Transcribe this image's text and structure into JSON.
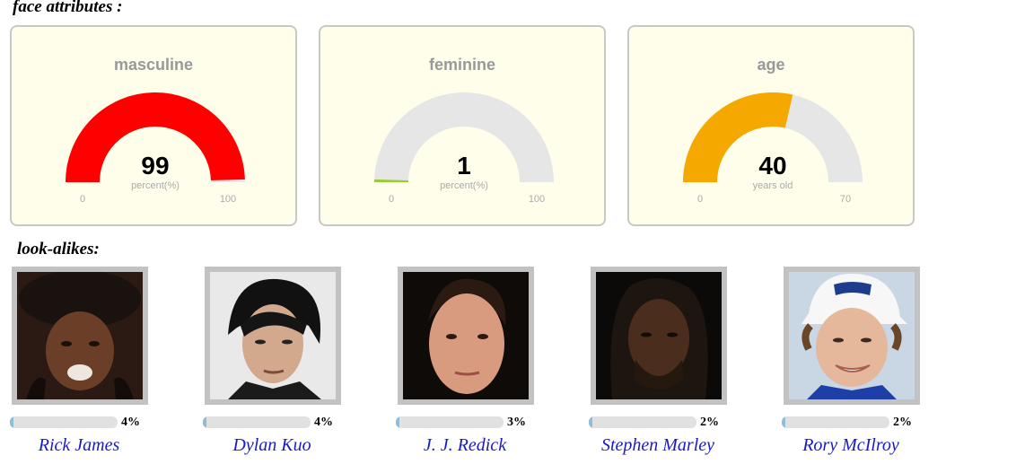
{
  "headings": {
    "face_attributes": "face attributes :",
    "look_alikes": "look-alikes:"
  },
  "gauges": [
    {
      "title": "masculine",
      "value": 99,
      "value_text": "99",
      "unit": "percent(%)",
      "min_label": "0",
      "max_label": "100",
      "min": 0,
      "max": 100,
      "color": "#ff0000"
    },
    {
      "title": "feminine",
      "value": 1,
      "value_text": "1",
      "unit": "percent(%)",
      "min_label": "0",
      "max_label": "100",
      "min": 0,
      "max": 100,
      "color": "#99cc33"
    },
    {
      "title": "age",
      "value": 40,
      "value_text": "40",
      "unit": "years old",
      "min_label": "0",
      "max_label": "70",
      "min": 0,
      "max": 70,
      "color": "#f5a800"
    }
  ],
  "gauge_track_color": "#e6e6e6",
  "lookalikes": [
    {
      "name": "Rick James",
      "percent_text": "4%",
      "percent": 4
    },
    {
      "name": "Dylan Kuo",
      "percent_text": "4%",
      "percent": 4
    },
    {
      "name": "J. J. Redick",
      "percent_text": "3%",
      "percent": 3
    },
    {
      "name": "Stephen Marley",
      "percent_text": "2%",
      "percent": 2
    },
    {
      "name": "Rory McIlroy",
      "percent_text": "2%",
      "percent": 2
    }
  ]
}
